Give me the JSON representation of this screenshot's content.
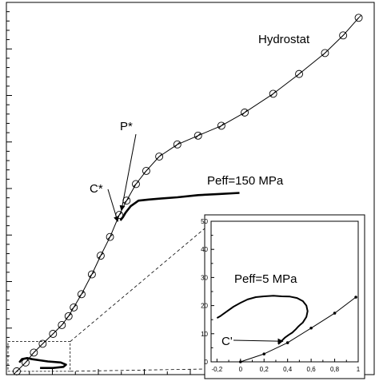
{
  "chart_data": [
    {
      "type": "line",
      "title": "",
      "xlabel": "",
      "ylabel": "",
      "grid": false,
      "legend": "none",
      "series": [
        {
          "name": "Hydrostat",
          "marker": "circle-slash",
          "points": [
            [
              0.0,
              0.0
            ],
            [
              0.17,
              0.08
            ],
            [
              0.33,
              0.17
            ],
            [
              0.5,
              0.25
            ],
            [
              0.7,
              0.34
            ],
            [
              0.87,
              0.42
            ],
            [
              1.0,
              0.5
            ],
            [
              1.1,
              0.58
            ],
            [
              1.25,
              0.7
            ],
            [
              1.45,
              0.88
            ],
            [
              1.62,
              1.05
            ],
            [
              1.8,
              1.22
            ],
            [
              1.98,
              1.42
            ],
            [
              2.12,
              1.55
            ],
            [
              2.3,
              1.7
            ],
            [
              2.5,
              1.82
            ],
            [
              2.75,
              1.95
            ],
            [
              3.1,
              2.06
            ],
            [
              3.5,
              2.14
            ],
            [
              3.95,
              2.23
            ],
            [
              4.4,
              2.35
            ],
            [
              4.95,
              2.52
            ],
            [
              5.45,
              2.7
            ],
            [
              5.95,
              2.89
            ],
            [
              6.3,
              3.05
            ],
            [
              6.6,
              3.21
            ]
          ]
        },
        {
          "name": "Peff=150 MPa",
          "marker": "none",
          "points": [
            [
              2.0,
              1.37
            ],
            [
              2.05,
              1.4
            ],
            [
              2.1,
              1.44
            ],
            [
              2.2,
              1.5
            ],
            [
              2.35,
              1.55
            ],
            [
              2.55,
              1.56
            ],
            [
              2.8,
              1.57
            ],
            [
              3.1,
              1.58
            ],
            [
              3.5,
              1.6
            ],
            [
              3.9,
              1.61
            ],
            [
              4.3,
              1.62
            ]
          ]
        },
        {
          "name": "Peff=5 MPa",
          "marker": "none",
          "points": [
            [
              0.05,
              0.08
            ],
            [
              0.1,
              0.11
            ],
            [
              0.2,
              0.12
            ],
            [
              0.3,
              0.11
            ],
            [
              0.45,
              0.1
            ],
            [
              0.6,
              0.09
            ],
            [
              0.85,
              0.08
            ],
            [
              0.95,
              0.06
            ],
            [
              0.9,
              0.04
            ],
            [
              0.7,
              0.03
            ],
            [
              0.55,
              0.03
            ],
            [
              0.45,
              0.03
            ]
          ]
        }
      ],
      "annotations": [
        {
          "label": "Hydrostat"
        },
        {
          "label": "P*",
          "arrow_to": [
            2.02,
            1.46
          ]
        },
        {
          "label": "C*",
          "arrow_to": [
            1.95,
            1.36
          ]
        },
        {
          "label": "Peff=150 MPa"
        }
      ],
      "xlim": [
        -0.2,
        6.9
      ],
      "ylim": [
        -0.03,
        3.35
      ]
    },
    {
      "type": "line",
      "inset": true,
      "title": "",
      "xlabel": "",
      "ylabel": "",
      "grid": false,
      "legend": "none",
      "xlim": [
        -0.25,
        1.0
      ],
      "ylim": [
        0,
        50
      ],
      "x_ticks": [
        "-0,2",
        "0",
        "0,2",
        "0,4",
        "0,6",
        "0,8",
        "1"
      ],
      "x_tick_values": [
        -0.2,
        0,
        0.2,
        0.4,
        0.6,
        0.8,
        1.0
      ],
      "y_ticks": [
        "0",
        "10",
        "20",
        "30",
        "40",
        "50"
      ],
      "y_tick_values": [
        0,
        10,
        20,
        30,
        40,
        50
      ],
      "series": [
        {
          "name": "Hydrostat",
          "marker": "small-dot",
          "points": [
            [
              0.0,
              0.0
            ],
            [
              0.2,
              2.8
            ],
            [
              0.4,
              6.8
            ],
            [
              0.6,
              12.0
            ],
            [
              0.8,
              17.3
            ],
            [
              0.98,
              23.0
            ]
          ]
        },
        {
          "name": "Peff=5 MPa",
          "marker": "none",
          "points": [
            [
              -0.2,
              15.6
            ],
            [
              -0.17,
              16.3
            ],
            [
              -0.12,
              17.8
            ],
            [
              -0.06,
              19.6
            ],
            [
              0.0,
              21.0
            ],
            [
              0.06,
              22.2
            ],
            [
              0.13,
              23.0
            ],
            [
              0.2,
              23.3
            ],
            [
              0.28,
              23.5
            ],
            [
              0.35,
              23.3
            ],
            [
              0.42,
              23.2
            ],
            [
              0.48,
              22.7
            ],
            [
              0.53,
              21.6
            ],
            [
              0.56,
              20.0
            ],
            [
              0.57,
              18.0
            ],
            [
              0.56,
              16.0
            ],
            [
              0.53,
              14.0
            ],
            [
              0.51,
              13.3
            ],
            [
              0.49,
              12.5
            ],
            [
              0.47,
              11.6
            ],
            [
              0.44,
              10.4
            ],
            [
              0.41,
              9.6
            ],
            [
              0.38,
              8.7
            ],
            [
              0.36,
              7.9
            ],
            [
              0.34,
              7.0
            ],
            [
              0.32,
              6.3
            ]
          ]
        }
      ],
      "annotations": [
        {
          "label": "Peff=5 MPa"
        },
        {
          "label": "C'",
          "arrow_to": [
            0.36,
            7.3
          ]
        }
      ]
    }
  ]
}
